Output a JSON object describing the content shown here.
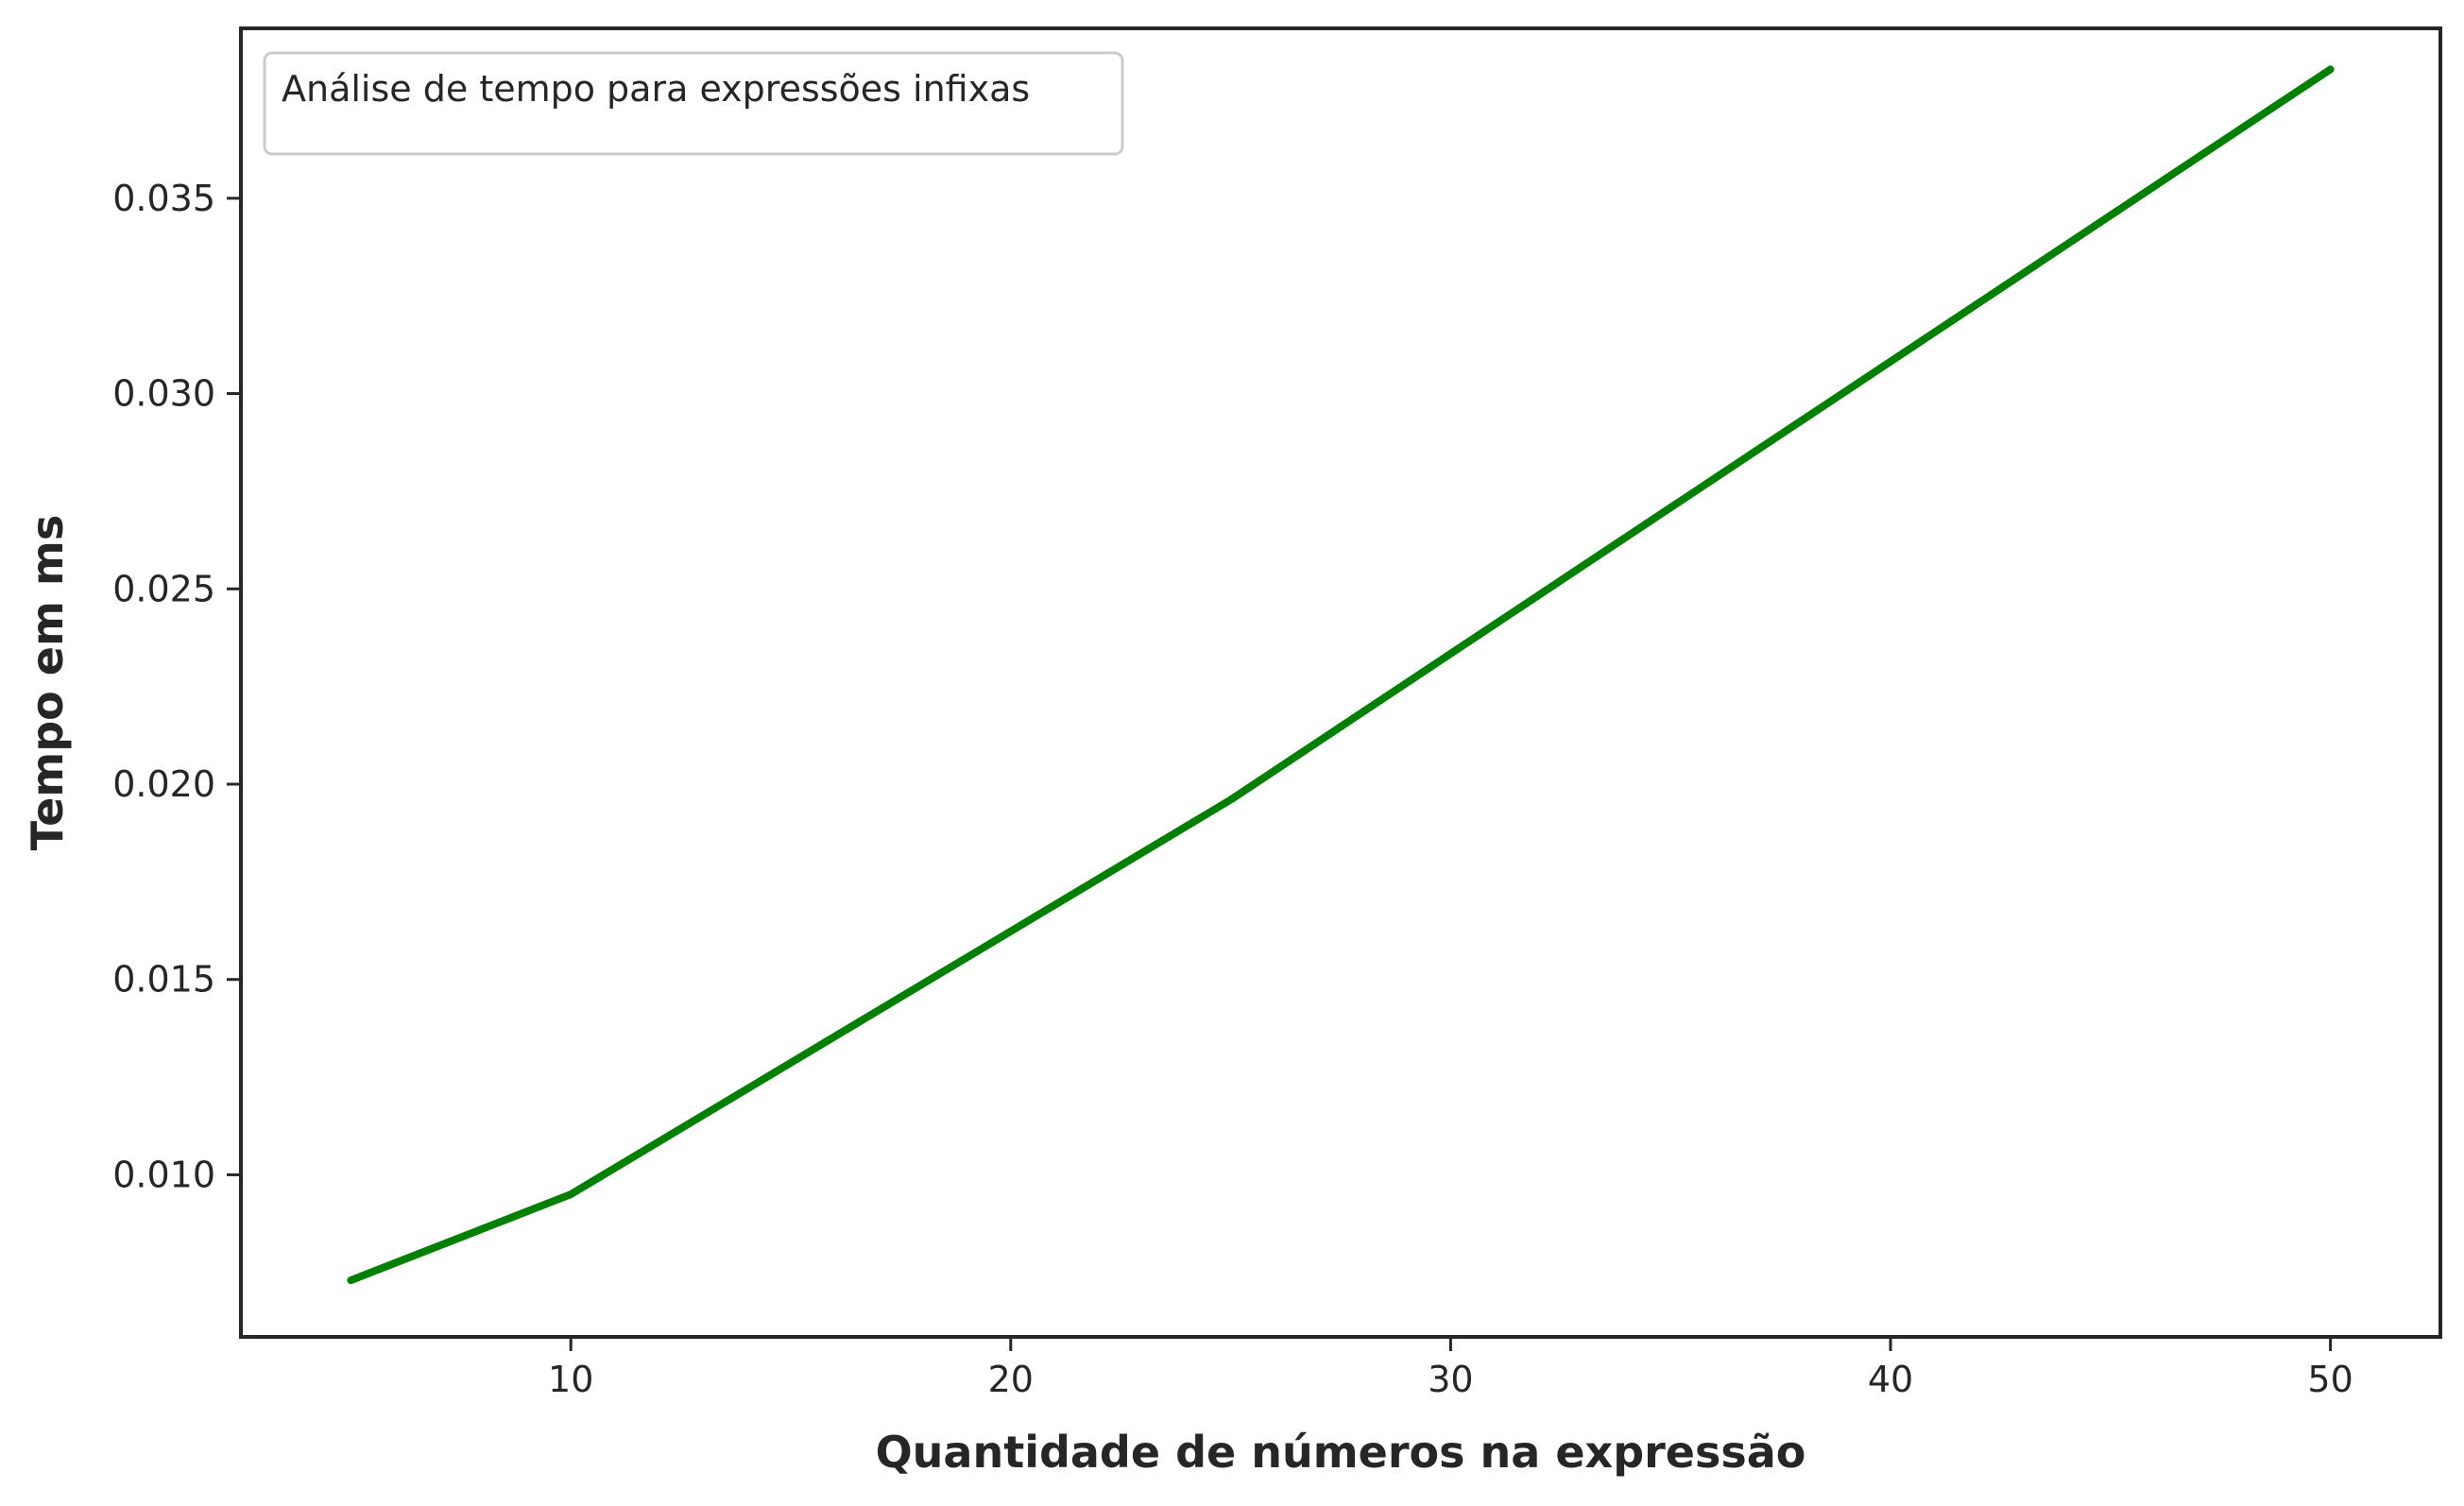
{
  "chart_data": {
    "type": "line",
    "xlabel": "Quantidade de números na expressão",
    "ylabel": "Tempo em ms",
    "xlim": [
      2.5,
      52.5
    ],
    "ylim": [
      0.00585,
      0.03935
    ],
    "xticks": [
      10,
      20,
      30,
      40,
      50
    ],
    "xtick_labels": [
      "10",
      "20",
      "30",
      "40",
      "50"
    ],
    "yticks": [
      0.01,
      0.015,
      0.02,
      0.025,
      0.03,
      0.035
    ],
    "ytick_labels": [
      "0.010",
      "0.015",
      "0.020",
      "0.025",
      "0.030",
      "0.035"
    ],
    "grid": false,
    "legend": {
      "title": "Análise de tempo para expressões infixas",
      "placement": "top-left"
    },
    "series": [
      {
        "color": "#008000",
        "x": [
          5,
          10,
          25,
          50
        ],
        "y": [
          0.0073,
          0.0095,
          0.0196,
          0.0383
        ]
      }
    ]
  }
}
